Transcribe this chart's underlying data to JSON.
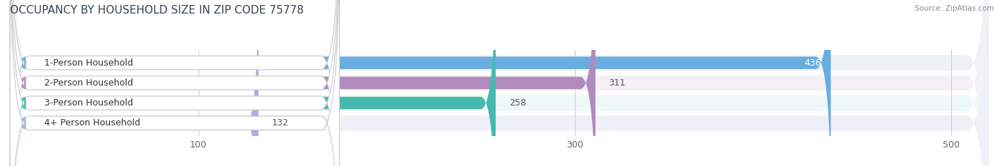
{
  "title": "OCCUPANCY BY HOUSEHOLD SIZE IN ZIP CODE 75778",
  "source": "Source: ZipAtlas.com",
  "categories": [
    "1-Person Household",
    "2-Person Household",
    "3-Person Household",
    "4+ Person Household"
  ],
  "values": [
    436,
    311,
    258,
    132
  ],
  "bar_colors": [
    "#6aade0",
    "#b08cbe",
    "#45b8b0",
    "#a8aee0"
  ],
  "background_color": "#ffffff",
  "row_bg_colors": [
    "#eef2f7",
    "#f5f0f8",
    "#eef8f7",
    "#f0f0f8"
  ],
  "xlim": [
    0,
    520
  ],
  "xticks": [
    100,
    300,
    500
  ],
  "title_fontsize": 11,
  "label_fontsize": 9,
  "value_fontsize": 9,
  "bar_height": 0.62
}
